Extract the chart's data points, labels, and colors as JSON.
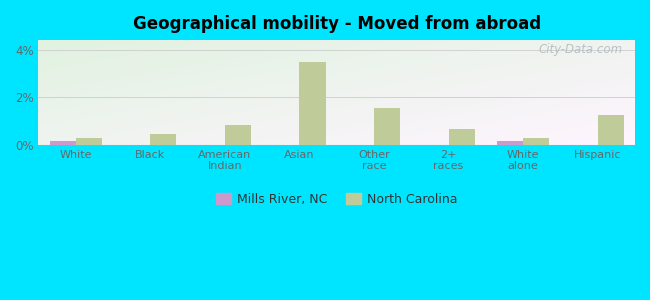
{
  "title": "Geographical mobility - Moved from abroad",
  "categories": [
    "White",
    "Black",
    "American\nIndian",
    "Asian",
    "Other\nrace",
    "2+\nraces",
    "White\nalone",
    "Hispanic"
  ],
  "mills_river": [
    0.15,
    0.0,
    0.0,
    0.0,
    0.0,
    0.0,
    0.15,
    0.0
  ],
  "north_carolina": [
    0.3,
    0.45,
    0.85,
    3.5,
    1.55,
    0.65,
    0.3,
    1.25
  ],
  "mills_river_color": "#cc99cc",
  "north_carolina_color": "#bfcc99",
  "background_outer": "#00e5ff",
  "ylim": [
    0,
    4.4
  ],
  "yticks": [
    0,
    2,
    4
  ],
  "ytick_labels": [
    "0%",
    "2%",
    "4%"
  ],
  "bar_width": 0.35,
  "legend_labels": [
    "Mills River, NC",
    "North Carolina"
  ],
  "watermark": "City-Data.com",
  "grid_color": "#cccccc",
  "tick_color": "#666666"
}
